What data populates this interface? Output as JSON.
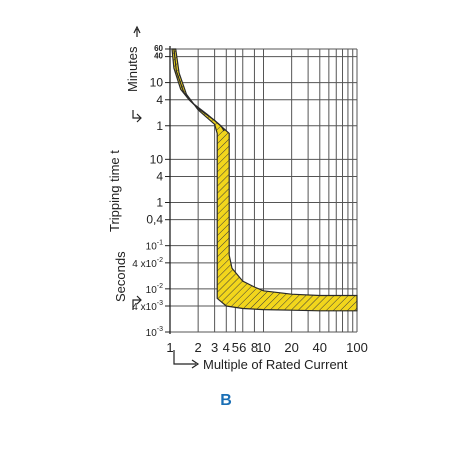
{
  "figure_label": "B",
  "colors": {
    "band": "#f2d61c",
    "band_outline": "#2a2a2a",
    "grid": "#555555",
    "label": "#1a6fb5"
  },
  "chart_data": {
    "type": "area",
    "title": "",
    "xlabel": "Multiple of Rated Current",
    "ylabel": "Tripping time t",
    "x_scale": "log",
    "xlim": [
      1,
      100
    ],
    "x_ticks": [
      {
        "value": 1,
        "label": "1"
      },
      {
        "value": 2,
        "label": "2"
      },
      {
        "value": 3,
        "label": "3"
      },
      {
        "value": 4,
        "label": "4"
      },
      {
        "value": 5,
        "label": "5"
      },
      {
        "value": 6,
        "label": "6"
      },
      {
        "value": 8,
        "label": "8"
      },
      {
        "value": 10,
        "label": "10"
      },
      {
        "value": 20,
        "label": "20"
      },
      {
        "value": 40,
        "label": "40"
      },
      {
        "value": 100,
        "label": "100"
      }
    ],
    "x_extra_grid": [
      30,
      50,
      60,
      70,
      80,
      90
    ],
    "y_scale": "log",
    "y_unit_minutes_label": "Minutes",
    "y_unit_seconds_label": "Seconds",
    "ylim_seconds": [
      0.001,
      3600
    ],
    "y_ticks": [
      {
        "seconds": 3600,
        "label": "60",
        "unit": "min"
      },
      {
        "seconds": 2400,
        "label": "40",
        "unit": "min"
      },
      {
        "seconds": 600,
        "label": "10",
        "unit": "min"
      },
      {
        "seconds": 240,
        "label": "4",
        "unit": "min"
      },
      {
        "seconds": 60,
        "label": "1",
        "unit": "min"
      },
      {
        "seconds": 10,
        "label": "10",
        "unit": "s"
      },
      {
        "seconds": 4,
        "label": "4",
        "unit": "s"
      },
      {
        "seconds": 1,
        "label": "1",
        "unit": "s"
      },
      {
        "seconds": 0.4,
        "label": "0,4",
        "unit": "s"
      },
      {
        "seconds": 0.1,
        "label": "10",
        "sup": "-1",
        "unit": "s"
      },
      {
        "seconds": 0.04,
        "label": "4 x10",
        "sup": "-2",
        "unit": "s"
      },
      {
        "seconds": 0.01,
        "label": "10",
        "sup": "-2",
        "unit": "s"
      },
      {
        "seconds": 0.004,
        "label": "4 x10",
        "sup": "-3",
        "unit": "s"
      },
      {
        "seconds": 0.001,
        "label": "10",
        "sup": "-3",
        "unit": "s"
      }
    ],
    "series": [
      {
        "band_upper": [
          [
            1.05,
            3600
          ],
          [
            1.1,
            1300
          ],
          [
            1.3,
            420
          ],
          [
            1.6,
            240
          ],
          [
            2,
            150
          ],
          [
            3,
            80
          ],
          [
            4.3,
            40
          ],
          [
            4.3,
            0.06
          ],
          [
            4.6,
            0.03
          ],
          [
            6,
            0.015
          ],
          [
            8,
            0.011
          ],
          [
            10,
            0.009
          ],
          [
            20,
            0.0075
          ],
          [
            40,
            0.007
          ],
          [
            100,
            0.007
          ]
        ],
        "band_lower": [
          [
            1.15,
            3600
          ],
          [
            1.25,
            1000
          ],
          [
            1.5,
            320
          ],
          [
            2,
            140
          ],
          [
            3,
            65
          ],
          [
            3.2,
            40
          ],
          [
            3.2,
            0.006
          ],
          [
            4,
            0.004
          ],
          [
            6,
            0.0035
          ],
          [
            10,
            0.0033
          ],
          [
            20,
            0.0032
          ],
          [
            40,
            0.0031
          ],
          [
            100,
            0.0031
          ]
        ],
        "curve_center": [
          [
            1.1,
            3600
          ],
          [
            1.17,
            1100
          ],
          [
            1.4,
            360
          ],
          [
            1.8,
            190
          ],
          [
            2.5,
            110
          ],
          [
            3.5,
            60
          ],
          [
            3.8,
            45
          ]
        ]
      }
    ]
  }
}
